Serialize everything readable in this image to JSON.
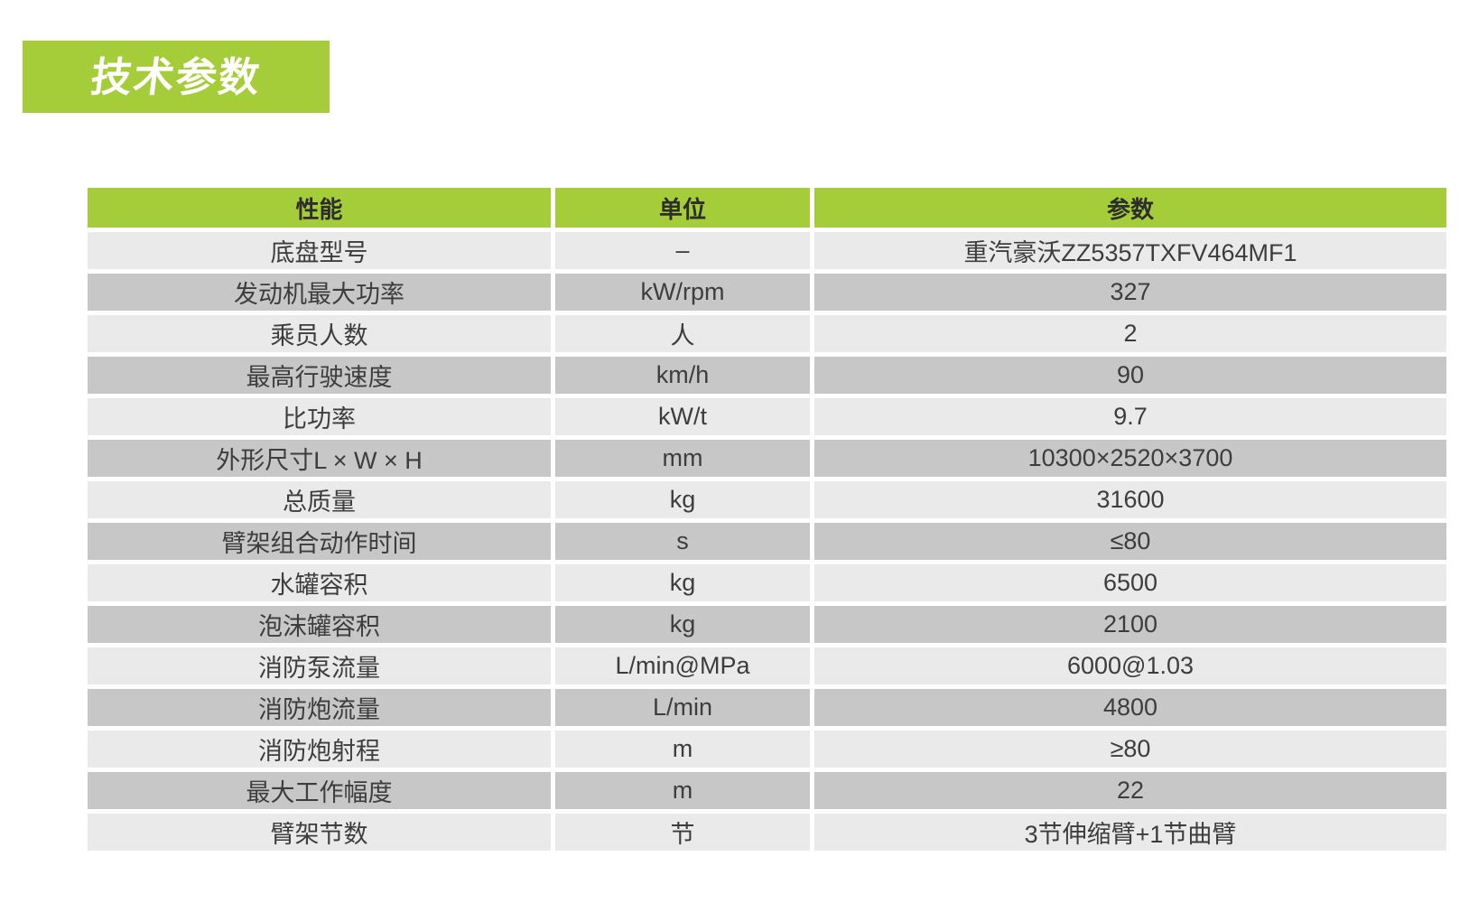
{
  "badge": {
    "label": "技术参数"
  },
  "colors": {
    "green": "#a5cd39",
    "row_light": "#eaeaea",
    "row_dark": "#c7c7c7",
    "badge_text": "#ffffff",
    "table_text": "#3d3d3d"
  },
  "table": {
    "headers": [
      "性能",
      "单位",
      "参数"
    ],
    "rows": [
      {
        "name": "底盘型号",
        "unit": "–",
        "value": "重汽豪沃ZZ5357TXFV464MF1"
      },
      {
        "name": "发动机最大功率",
        "unit": "kW/rpm",
        "value": "327"
      },
      {
        "name": "乘员人数",
        "unit": "人",
        "value": "2"
      },
      {
        "name": "最高行驶速度",
        "unit": "km/h",
        "value": "90"
      },
      {
        "name": "比功率",
        "unit": "kW/t",
        "value": "9.7"
      },
      {
        "name": "外形尺寸L × W × H",
        "unit": "mm",
        "value": "10300×2520×3700"
      },
      {
        "name": "总质量",
        "unit": "kg",
        "value": "31600"
      },
      {
        "name": "臂架组合动作时间",
        "unit": "s",
        "value": "≤80"
      },
      {
        "name": "水罐容积",
        "unit": "kg",
        "value": "6500"
      },
      {
        "name": "泡沫罐容积",
        "unit": "kg",
        "value": "2100"
      },
      {
        "name": "消防泵流量",
        "unit": "L/min@MPa",
        "value": "6000@1.03"
      },
      {
        "name": "消防炮流量",
        "unit": "L/min",
        "value": "4800"
      },
      {
        "name": "消防炮射程",
        "unit": "m",
        "value": "≥80"
      },
      {
        "name": "最大工作幅度",
        "unit": "m",
        "value": "22"
      },
      {
        "name": "臂架节数",
        "unit": "节",
        "value": "3节伸缩臂+1节曲臂"
      }
    ]
  }
}
